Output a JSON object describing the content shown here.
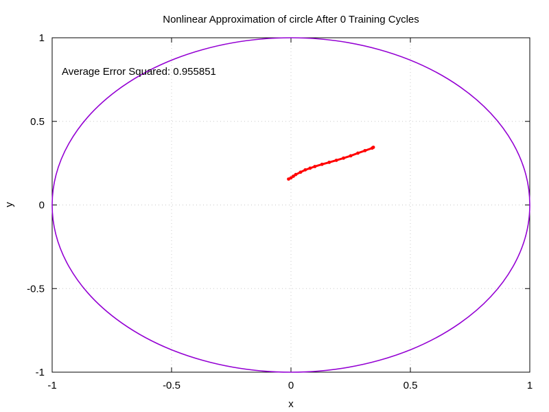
{
  "chart_data": {
    "type": "line",
    "title": "Nonlinear Approximation of circle After 0 Training Cycles",
    "xlabel": "x",
    "ylabel": "y",
    "xlim": [
      -1,
      1
    ],
    "ylim": [
      -1,
      1
    ],
    "grid": true,
    "x_ticks": [
      -1,
      -0.5,
      0,
      0.5,
      1
    ],
    "x_tick_labels": [
      "-1",
      "-0.5",
      "0",
      "0.5",
      "1"
    ],
    "y_ticks": [
      1,
      0.5,
      0,
      -0.5,
      -1
    ],
    "y_tick_labels": [
      "1",
      "0.5",
      "0",
      "-0.5",
      "-1"
    ],
    "annotation": "Average Error Squared: 0.955851",
    "series": [
      {
        "style": "line",
        "color": "#9400d3",
        "shape": "unit circle",
        "center": [
          0,
          0
        ],
        "radius": 1
      },
      {
        "style": "points",
        "color": "#ff0000",
        "x": [
          -0.01,
          0.0,
          0.01,
          0.02,
          0.04,
          0.06,
          0.08,
          0.1,
          0.13,
          0.16,
          0.19,
          0.22,
          0.25,
          0.28,
          0.31,
          0.34,
          0.345
        ],
        "y": [
          0.155,
          0.162,
          0.172,
          0.182,
          0.196,
          0.21,
          0.22,
          0.23,
          0.243,
          0.255,
          0.267,
          0.28,
          0.294,
          0.31,
          0.325,
          0.34,
          0.345
        ]
      }
    ]
  }
}
